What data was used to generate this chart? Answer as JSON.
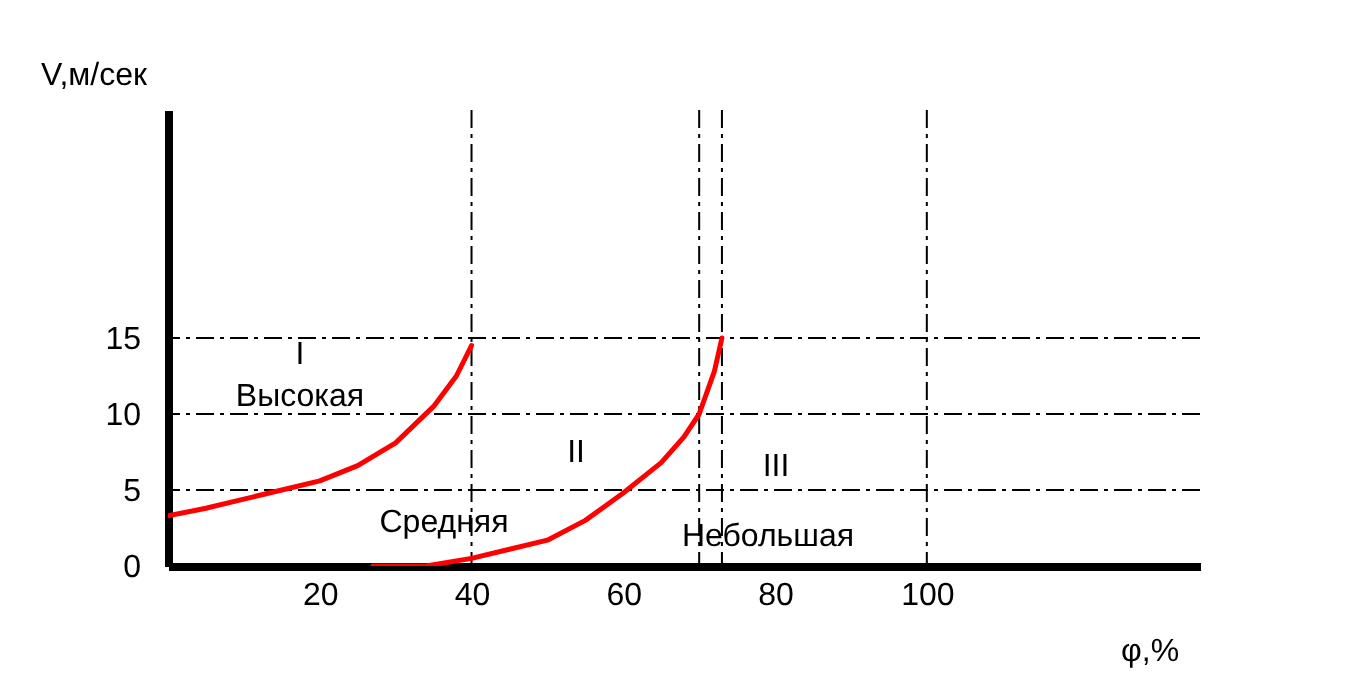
{
  "chart_data": {
    "type": "line",
    "xlabel": "φ,%",
    "ylabel": "V,м/сек",
    "xlim": [
      0,
      136
    ],
    "ylim": [
      0,
      30
    ],
    "xticks": [
      20,
      40,
      60,
      80,
      100
    ],
    "yticks": [
      0,
      5,
      10,
      15
    ],
    "grid": false,
    "marker": "none",
    "line_style": "solid",
    "series": [
      {
        "color": "#ff0000",
        "x": [
          0,
          5,
          10,
          15,
          20,
          25,
          30,
          35,
          38,
          40
        ],
        "values": [
          3.3,
          3.8,
          4.4,
          5.0,
          5.6,
          6.6,
          8.1,
          10.5,
          12.5,
          14.5
        ]
      },
      {
        "color": "#ff0000",
        "x": [
          27,
          34,
          40,
          50,
          55,
          60,
          65,
          68,
          70,
          72,
          73
        ],
        "values": [
          0,
          0,
          0.5,
          1.7,
          3.0,
          4.8,
          6.8,
          8.5,
          10,
          12.8,
          15
        ]
      }
    ],
    "ref_lines": [
      {
        "axis": "y",
        "value": 5,
        "color": "#000000",
        "line_style": "dashed"
      },
      {
        "axis": "y",
        "value": 10,
        "color": "#000000",
        "line_style": "dashed"
      },
      {
        "axis": "y",
        "value": 15,
        "color": "#000000",
        "line_style": "dashed"
      },
      {
        "axis": "x",
        "value": 40,
        "color": "#000000",
        "line_style": "dashed"
      },
      {
        "axis": "x",
        "value": 70,
        "color": "#000000",
        "line_style": "dashed"
      },
      {
        "axis": "x",
        "value": 73,
        "color": "#000000",
        "line_style": "dashed"
      },
      {
        "axis": "x",
        "value": 100,
        "color": "#000000",
        "line_style": "dashed"
      }
    ],
    "annotations": [
      "I",
      "Высокая",
      "II",
      "Средняя",
      "III",
      "Небольшая"
    ]
  }
}
